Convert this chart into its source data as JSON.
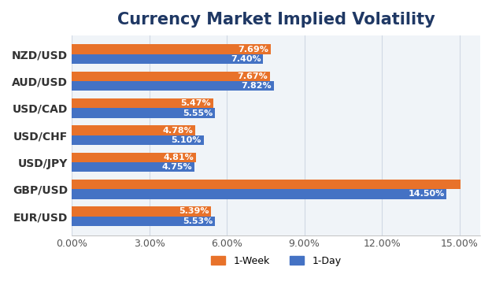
{
  "title": "Currency Market Implied Volatility",
  "categories": [
    "EUR/USD",
    "GBP/USD",
    "USD/JPY",
    "USD/CHF",
    "USD/CAD",
    "AUD/USD",
    "NZD/USD"
  ],
  "week1": [
    5.39,
    15.05,
    4.81,
    4.78,
    5.47,
    7.67,
    7.69
  ],
  "day1": [
    5.53,
    14.5,
    4.75,
    5.1,
    5.55,
    7.82,
    7.4
  ],
  "week1_labels": [
    "5.39%",
    "",
    "4.81%",
    "4.78%",
    "5.47%",
    "7.67%",
    "7.69%"
  ],
  "day1_labels": [
    "5.53%",
    "14.50%",
    "4.75%",
    "5.10%",
    "5.55%",
    "7.82%",
    "7.40%"
  ],
  "color_week": "#E8722A",
  "color_day": "#4472C4",
  "xlim": [
    0,
    15.8
  ],
  "xticks": [
    0,
    3,
    6,
    9,
    12,
    15
  ],
  "xtick_labels": [
    "0.00%",
    "3.00%",
    "6.00%",
    "9.00%",
    "12.00%",
    "15.00%"
  ],
  "title_fontsize": 15,
  "label_fontsize": 8,
  "tick_fontsize": 9,
  "ytick_fontsize": 10,
  "legend_labels": [
    "1-Week",
    "1-Day"
  ],
  "background_color": "#ffffff",
  "plot_bg_color": "#f0f4f8",
  "bar_height": 0.36,
  "title_color": "#1F3864",
  "grid_color": "#d0d8e4"
}
